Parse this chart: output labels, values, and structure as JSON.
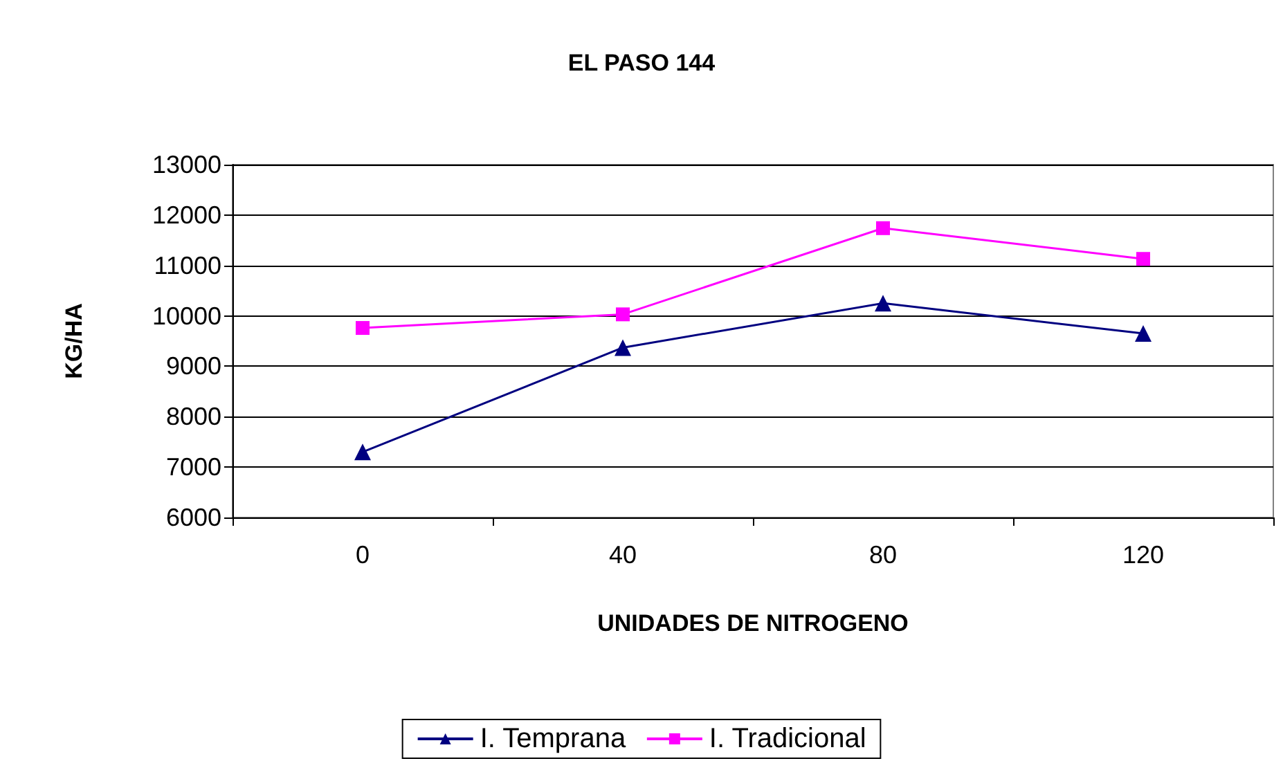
{
  "chart_data": {
    "type": "line",
    "title": "EL PASO 144",
    "xlabel": "UNIDADES DE NITROGENO",
    "ylabel": "KG/HA",
    "categories": [
      "0",
      "40",
      "80",
      "120"
    ],
    "series": [
      {
        "name": "I. Temprana",
        "color": "#000080",
        "marker": "triangle",
        "values": [
          7300,
          9370,
          10250,
          9650
        ]
      },
      {
        "name": "I. Tradicional",
        "color": "#ff00ff",
        "marker": "square",
        "values": [
          9760,
          10030,
          11740,
          11130
        ]
      }
    ],
    "ylim": [
      6000,
      13000
    ],
    "yticks": [
      6000,
      7000,
      8000,
      9000,
      10000,
      11000,
      12000,
      13000
    ],
    "grid": "y",
    "legend": "bottom",
    "line_style": "solid"
  }
}
